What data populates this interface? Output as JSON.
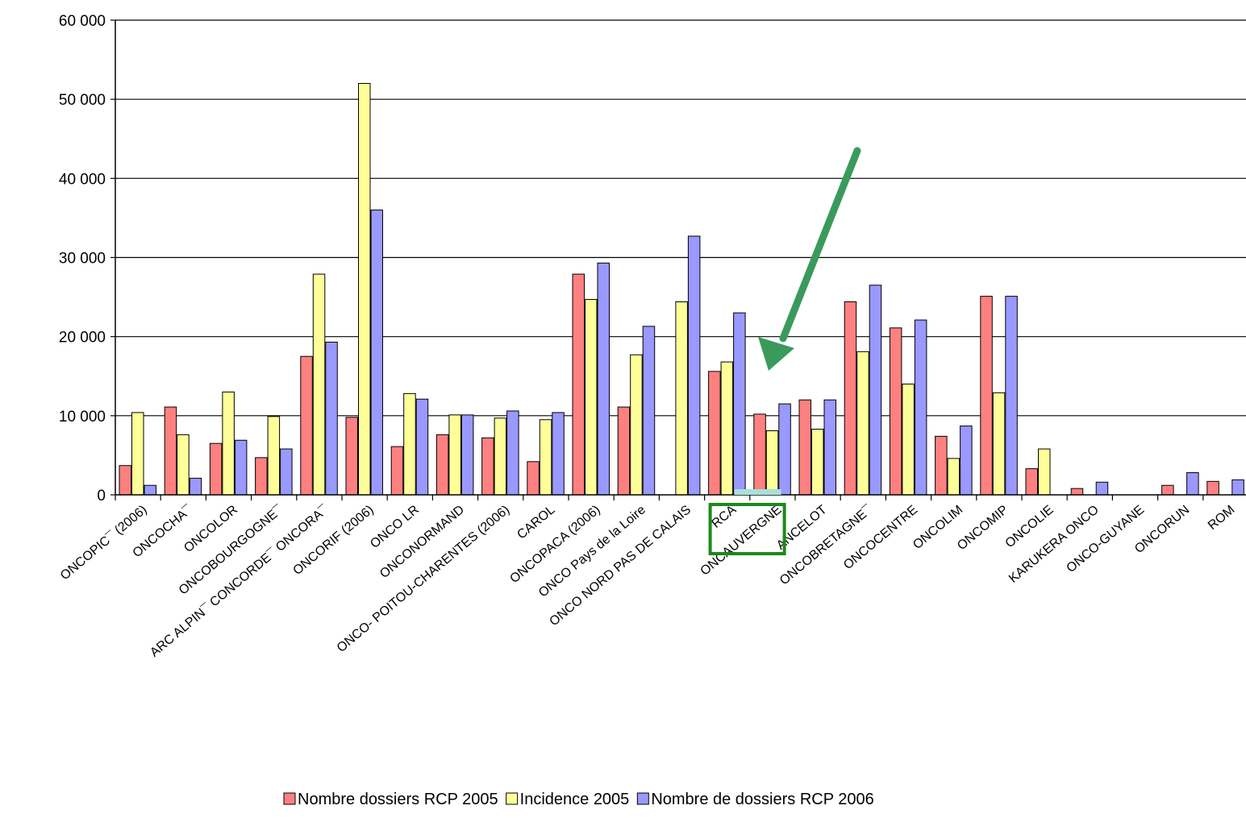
{
  "chart_data": {
    "type": "bar",
    "title": "",
    "xlabel": "",
    "ylabel": "",
    "ylim": [
      0,
      60000
    ],
    "yticks": [
      "0",
      "10 000",
      "20 000",
      "30 000",
      "40 000",
      "50 000",
      "60 000"
    ],
    "ytick_values": [
      0,
      10000,
      20000,
      30000,
      40000,
      50000,
      60000
    ],
    "grid": true,
    "legend_position": "bottom",
    "categories": [
      "ONCOPIC¯ (2006)",
      "ONCOCHA¯",
      "ONCOLOR",
      "ONCOBOURGOGNE¯",
      "ARC ALPIN¯ CONCORDE¯ ONCORA¯",
      "ONCORIF (2006)",
      "ONCO LR",
      "ONCONORMAND",
      "ONCO- POITOU-CHARENTES (2006)",
      "CAROL",
      "ONCOPACA (2006)",
      "ONCO Pays de la Loire",
      "ONCO NORD PAS DE CALAIS",
      "RCA",
      "ONCAUVERGNE",
      "ANCELOT",
      "ONCOBRETAGNE¯",
      "ONCOCENTRE",
      "ONCOLIM",
      "ONCOMIP",
      "ONCOLIE",
      "KARUKERA ONCO",
      "ONCO-GUYANE",
      "ONCORUN",
      "ROM"
    ],
    "series": [
      {
        "name": "Nombre dossiers RCP 2005",
        "color": "#ff8080",
        "values": [
          3700,
          11100,
          6500,
          4700,
          17500,
          9800,
          6100,
          7600,
          7200,
          4200,
          27900,
          11100,
          0,
          15600,
          10200,
          12000,
          24400,
          21100,
          7400,
          25100,
          3300,
          800,
          0,
          1200,
          1700
        ]
      },
      {
        "name": "Incidence 2005",
        "color": "#ffff99",
        "values": [
          10400,
          7600,
          13000,
          9900,
          27900,
          52000,
          12800,
          10100,
          9700,
          9500,
          24700,
          17700,
          24400,
          16800,
          8100,
          8300,
          18100,
          14000,
          4600,
          12900,
          5800,
          0,
          0,
          0,
          0
        ]
      },
      {
        "name": "Nombre de dossiers RCP 2006",
        "color": "#9999ff",
        "values": [
          1200,
          2100,
          6900,
          5800,
          19300,
          36000,
          12100,
          10100,
          10600,
          10400,
          29300,
          21300,
          32700,
          23000,
          11500,
          12000,
          26500,
          22100,
          8700,
          25100,
          0,
          1600,
          0,
          2800,
          1900
        ]
      }
    ]
  },
  "annotations": {
    "highlight_box_color": "#1a8a1a",
    "arrow_color": "#3a9a5c",
    "highlight_bar_color": "#a8e0dc"
  }
}
